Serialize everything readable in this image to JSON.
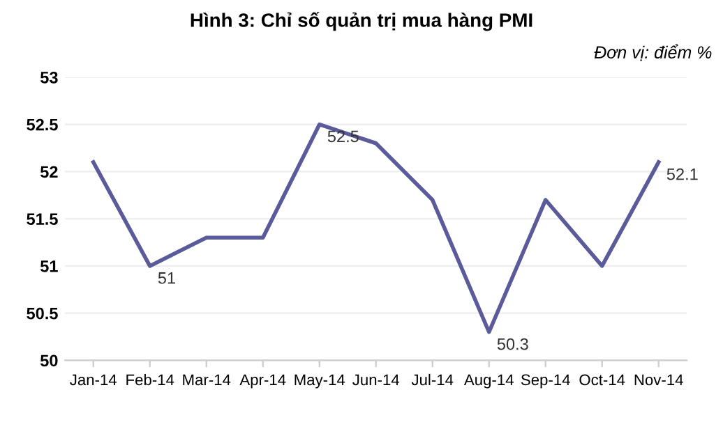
{
  "chart_data": {
    "type": "line",
    "title": "Hình 3: Chỉ số quản trị mua hàng PMI",
    "subtitle": "Đơn vị: điểm %",
    "categories": [
      "Jan-14",
      "Feb-14",
      "Mar-14",
      "Apr-14",
      "May-14",
      "Jun-14",
      "Jul-14",
      "Aug-14",
      "Sep-14",
      "Oct-14",
      "Nov-14"
    ],
    "series": [
      {
        "color": "#5b5a9a",
        "values": [
          52.1,
          51,
          51.3,
          51.3,
          52.5,
          52.3,
          51.7,
          50.3,
          51.7,
          51,
          52.1
        ],
        "value_labels": [
          null,
          "51",
          null,
          null,
          "52.5",
          null,
          null,
          "50.3",
          null,
          null,
          "52.1"
        ]
      }
    ],
    "ylim": [
      50,
      53
    ],
    "yticks": [
      50,
      50.5,
      51,
      51.5,
      52,
      52.5,
      53
    ],
    "grid": "y",
    "legend": false,
    "marker": "none",
    "line_style": "solid"
  }
}
